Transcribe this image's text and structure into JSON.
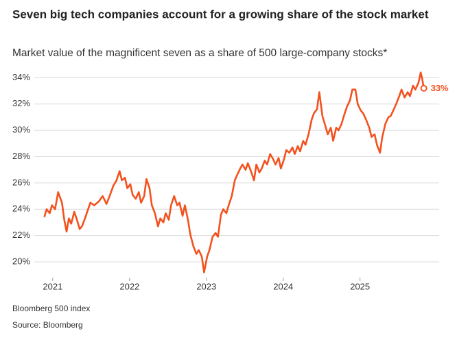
{
  "chart_data": {
    "type": "line",
    "title": "Seven big tech companies account for a growing share of the stock market",
    "subtitle": "Market value of the magnificent seven as a share of 500 large-company stocks*",
    "note": "Bloomberg 500 index",
    "source": "Source: Bloomberg",
    "color": "#f4511e",
    "grid": true,
    "xlim": [
      2020.76,
      2026.03
    ],
    "xticks": [
      2021,
      2022,
      2023,
      2024,
      2025
    ],
    "ylim": [
      18.8,
      34.7
    ],
    "yticks": [
      {
        "value": 20,
        "label": "20%"
      },
      {
        "value": 22,
        "label": "22%"
      },
      {
        "value": 24,
        "label": "24%"
      },
      {
        "value": 26,
        "label": "26%"
      },
      {
        "value": 28,
        "label": "28%"
      },
      {
        "value": 30,
        "label": "30%"
      },
      {
        "value": 32,
        "label": "32%"
      },
      {
        "value": 34,
        "label": "34%"
      }
    ],
    "x": [
      2020.89,
      2020.92,
      2020.96,
      2020.99,
      2021.03,
      2021.07,
      2021.12,
      2021.15,
      2021.18,
      2021.21,
      2021.24,
      2021.28,
      2021.31,
      2021.35,
      2021.38,
      2021.42,
      2021.46,
      2021.49,
      2021.54,
      2021.6,
      2021.65,
      2021.7,
      2021.74,
      2021.79,
      2021.83,
      2021.87,
      2021.9,
      2021.94,
      2021.97,
      2022.01,
      2022.04,
      2022.08,
      2022.12,
      2022.15,
      2022.19,
      2022.22,
      2022.26,
      2022.29,
      2022.33,
      2022.37,
      2022.4,
      2022.44,
      2022.47,
      2022.51,
      2022.54,
      2022.58,
      2022.62,
      2022.65,
      2022.69,
      2022.72,
      2022.76,
      2022.79,
      2022.83,
      2022.87,
      2022.9,
      2022.94,
      2022.97,
      2023.01,
      2023.04,
      2023.08,
      2023.12,
      2023.15,
      2023.19,
      2023.22,
      2023.26,
      2023.29,
      2023.33,
      2023.37,
      2023.4,
      2023.44,
      2023.47,
      2023.51,
      2023.54,
      2023.58,
      2023.62,
      2023.65,
      2023.69,
      2023.72,
      2023.76,
      2023.79,
      2023.83,
      2023.87,
      2023.9,
      2023.94,
      2023.97,
      2024.01,
      2024.04,
      2024.08,
      2024.12,
      2024.15,
      2024.19,
      2024.22,
      2024.26,
      2024.29,
      2024.33,
      2024.37,
      2024.4,
      2024.44,
      2024.47,
      2024.51,
      2024.54,
      2024.58,
      2024.62,
      2024.65,
      2024.69,
      2024.72,
      2024.76,
      2024.79,
      2024.83,
      2024.87,
      2024.9,
      2024.94,
      2024.97,
      2025.01,
      2025.04,
      2025.08,
      2025.12,
      2025.15,
      2025.19,
      2025.22,
      2025.26,
      2025.29,
      2025.33,
      2025.37,
      2025.4,
      2025.44,
      2025.47,
      2025.51,
      2025.54,
      2025.58,
      2025.62,
      2025.65,
      2025.69,
      2025.72,
      2025.76,
      2025.79,
      2025.81,
      2025.83
    ],
    "values": [
      23.4,
      24.0,
      23.7,
      24.3,
      24.0,
      25.3,
      24.5,
      23.2,
      22.3,
      23.3,
      22.9,
      23.8,
      23.3,
      22.5,
      22.7,
      23.3,
      24.0,
      24.5,
      24.3,
      24.6,
      25.0,
      24.4,
      25.0,
      25.8,
      26.2,
      26.9,
      26.2,
      26.4,
      25.6,
      25.9,
      25.1,
      24.8,
      25.3,
      24.5,
      25.0,
      26.3,
      25.6,
      24.3,
      23.7,
      22.7,
      23.3,
      23.0,
      23.7,
      23.2,
      24.3,
      25.0,
      24.3,
      24.5,
      23.5,
      24.3,
      23.2,
      22.1,
      21.2,
      20.6,
      20.9,
      20.4,
      19.2,
      20.4,
      20.9,
      21.9,
      22.2,
      21.9,
      23.6,
      24.0,
      23.7,
      24.3,
      25.0,
      26.2,
      26.6,
      27.1,
      27.4,
      27.0,
      27.5,
      26.9,
      26.2,
      27.4,
      26.8,
      27.1,
      27.7,
      27.4,
      28.2,
      27.8,
      27.4,
      27.9,
      27.1,
      27.8,
      28.5,
      28.3,
      28.7,
      28.2,
      28.8,
      28.4,
      29.2,
      28.9,
      29.7,
      30.8,
      31.3,
      31.6,
      32.9,
      31.1,
      30.5,
      29.7,
      30.2,
      29.2,
      30.2,
      30.0,
      30.5,
      31.1,
      31.8,
      32.3,
      33.1,
      33.1,
      32.0,
      31.5,
      31.3,
      30.8,
      30.2,
      29.5,
      29.7,
      28.9,
      28.3,
      29.5,
      30.5,
      31.0,
      31.1,
      31.6,
      32.0,
      32.6,
      33.1,
      32.5,
      32.9,
      32.6,
      33.4,
      33.1,
      33.6,
      34.4,
      33.9,
      33.2
    ],
    "value_labels": [
      null,
      null,
      null,
      null,
      null,
      null,
      null,
      null,
      null,
      null,
      null,
      null,
      null,
      null,
      null,
      null,
      null,
      null,
      null,
      null,
      null,
      null,
      null,
      null,
      null,
      null,
      null,
      null,
      null,
      null,
      null,
      null,
      null,
      null,
      null,
      null,
      null,
      null,
      null,
      null,
      null,
      null,
      null,
      null,
      null,
      null,
      null,
      null,
      null,
      null,
      null,
      null,
      null,
      null,
      null,
      null,
      null,
      null,
      null,
      null,
      null,
      null,
      null,
      null,
      null,
      null,
      null,
      null,
      null,
      null,
      null,
      null,
      null,
      null,
      null,
      null,
      null,
      null,
      null,
      null,
      null,
      null,
      null,
      null,
      null,
      null,
      null,
      null,
      null,
      null,
      null,
      null,
      null,
      null,
      null,
      null,
      null,
      null,
      null,
      null,
      null,
      null,
      null,
      null,
      null,
      null,
      null,
      null,
      null,
      null,
      null,
      null,
      null,
      null,
      null,
      null,
      null,
      null,
      null,
      null,
      null,
      null,
      null,
      null,
      null,
      null,
      null,
      null,
      null,
      null,
      null,
      null,
      null,
      null,
      null,
      null,
      null,
      "33%"
    ]
  }
}
